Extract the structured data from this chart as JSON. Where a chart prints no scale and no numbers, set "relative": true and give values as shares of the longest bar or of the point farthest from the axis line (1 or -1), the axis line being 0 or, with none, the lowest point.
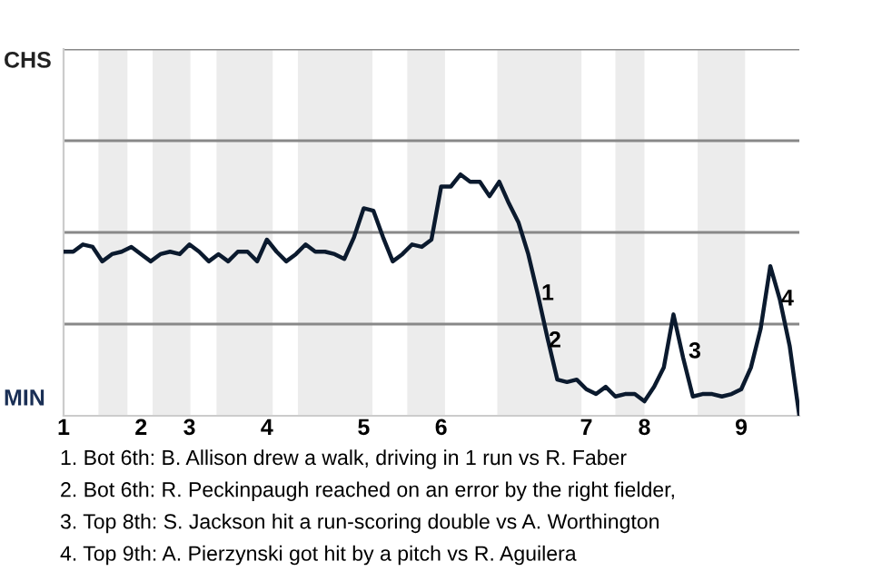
{
  "chart_data": {
    "type": "line",
    "relative": true,
    "ref_lines": [
      {
        "axis": "y",
        "value": 0.38,
        "color": "#888888"
      },
      {
        "axis": "y",
        "value": 0.76,
        "color": "#888888"
      },
      {
        "axis": "y",
        "value": 1.14,
        "color": "#888888"
      },
      {
        "axis": "y",
        "value": 1.52,
        "color": "#888888"
      }
    ],
    "categories": [
      "1",
      null,
      null,
      null,
      null,
      null,
      null,
      null,
      "2",
      null,
      null,
      null,
      null,
      "3",
      null,
      null,
      null,
      null,
      null,
      null,
      null,
      "4",
      null,
      null,
      null,
      null,
      null,
      null,
      null,
      null,
      null,
      "5",
      null,
      null,
      null,
      null,
      null,
      null,
      null,
      "6",
      null,
      null,
      null,
      null,
      null,
      null,
      null,
      null,
      null,
      null,
      null,
      null,
      null,
      null,
      "7",
      null,
      null,
      null,
      null,
      null,
      "8",
      null,
      null,
      null,
      null,
      null,
      null,
      null,
      null,
      null,
      "9",
      null,
      null,
      null,
      null,
      null,
      null
    ],
    "series": [
      {
        "color": "#0b1a2e",
        "values": [
          0.68,
          0.68,
          0.71,
          0.7,
          0.64,
          0.67,
          0.68,
          0.7,
          0.67,
          0.64,
          0.67,
          0.68,
          0.67,
          0.71,
          0.68,
          0.64,
          0.67,
          0.64,
          0.68,
          0.68,
          0.64,
          0.73,
          0.68,
          0.64,
          0.67,
          0.71,
          0.68,
          0.68,
          0.67,
          0.65,
          0.74,
          0.86,
          0.85,
          0.74,
          0.64,
          0.67,
          0.71,
          0.7,
          0.73,
          0.95,
          0.95,
          1,
          0.97,
          0.97,
          0.91,
          0.97,
          0.88,
          0.8,
          0.67,
          0.5,
          0.32,
          0.15,
          0.14,
          0.15,
          0.11,
          0.09,
          0.12,
          0.08,
          0.09,
          0.09,
          0.06,
          0.12,
          0.2,
          0.42,
          0.24,
          0.08,
          0.09,
          0.09,
          0.08,
          0.09,
          0.11,
          0.2,
          0.36,
          0.62,
          0.48,
          0.29,
          0
        ]
      }
    ],
    "annotations": [
      "CHS",
      "MIN",
      "1",
      "2",
      "3",
      "4",
      "1. Bot 6th: B. Allison drew a walk, driving in 1 run vs R. Faber",
      "2. Bot 6th: R. Peckinpaugh reached on an error by the right fielder,",
      "3. Top 8th: S. Jackson hit a run-scoring double vs A. Worthington",
      "4. Top 9th: A. Pierzynski got hit by a pitch vs R. Aguilera"
    ]
  }
}
